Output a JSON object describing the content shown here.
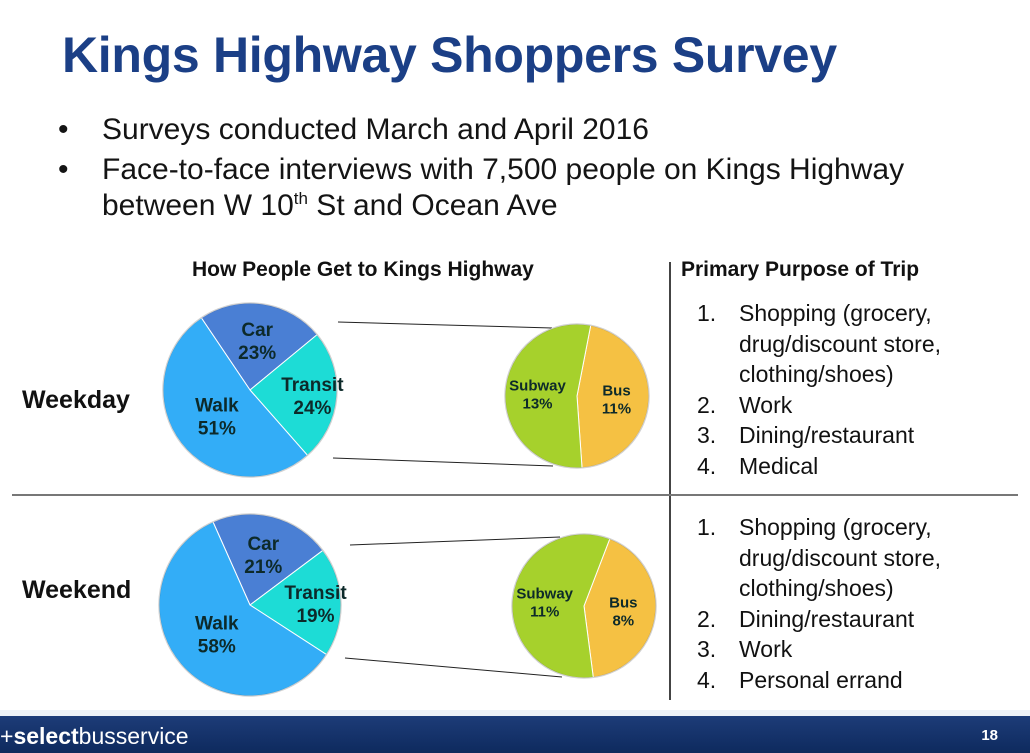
{
  "title": "Kings Highway Shoppers Survey",
  "bullets": [
    {
      "dot": "•",
      "text": "Surveys conducted March and April 2016"
    },
    {
      "dot": "•",
      "text_pre": "Face-to-face interviews with 7,500 people on Kings Highway between W 10",
      "sup": "th",
      "text_post": " St and Ocean Ave"
    }
  ],
  "headers": {
    "mode": "How People Get to Kings Highway",
    "purpose": "Primary Purpose of Trip"
  },
  "row_labels": {
    "weekday": "Weekday",
    "weekend": "Weekend"
  },
  "chart_data": [
    {
      "type": "pie",
      "group": "Weekday",
      "slices": [
        {
          "label": "Car",
          "value": 23,
          "value_label": "23%",
          "color": "#4a7fd4"
        },
        {
          "label": "Transit",
          "value": 24,
          "value_label": "24%",
          "color": "#1ddcd6"
        },
        {
          "label": "Walk",
          "value": 51,
          "value_label": "51%",
          "color": "#33adf7"
        }
      ],
      "transit_breakdown": [
        {
          "label": "Bus",
          "value": 11,
          "value_label": "11%",
          "color": "#f5c143"
        },
        {
          "label": "Subway",
          "value": 13,
          "value_label": "13%",
          "color": "#a6d12c"
        }
      ]
    },
    {
      "type": "pie",
      "group": "Weekend",
      "slices": [
        {
          "label": "Car",
          "value": 21,
          "value_label": "21%",
          "color": "#4a7fd4"
        },
        {
          "label": "Transit",
          "value": 19,
          "value_label": "19%",
          "color": "#1ddcd6"
        },
        {
          "label": "Walk",
          "value": 58,
          "value_label": "58%",
          "color": "#33adf7"
        }
      ],
      "transit_breakdown": [
        {
          "label": "Bus",
          "value": 8,
          "value_label": "8%",
          "color": "#f5c143"
        },
        {
          "label": "Subway",
          "value": 11,
          "value_label": "11%",
          "color": "#a6d12c"
        }
      ]
    }
  ],
  "purpose": {
    "weekday": [
      {
        "num": "1.",
        "text": "Shopping (grocery, drug/discount store, clothing/shoes)"
      },
      {
        "num": "2.",
        "text": "Work"
      },
      {
        "num": "3.",
        "text": "Dining/restaurant"
      },
      {
        "num": "4.",
        "text": "Medical"
      }
    ],
    "weekend": [
      {
        "num": "1.",
        "text": "Shopping (grocery, drug/discount store, clothing/shoes)"
      },
      {
        "num": "2.",
        "text": "Dining/restaurant"
      },
      {
        "num": "3.",
        "text": "Work"
      },
      {
        "num": "4.",
        "text": "Personal errand"
      }
    ]
  },
  "footer": {
    "brand_prefix": "+",
    "brand_bold": "select",
    "brand_rest": "busservice",
    "page_number": "18"
  }
}
